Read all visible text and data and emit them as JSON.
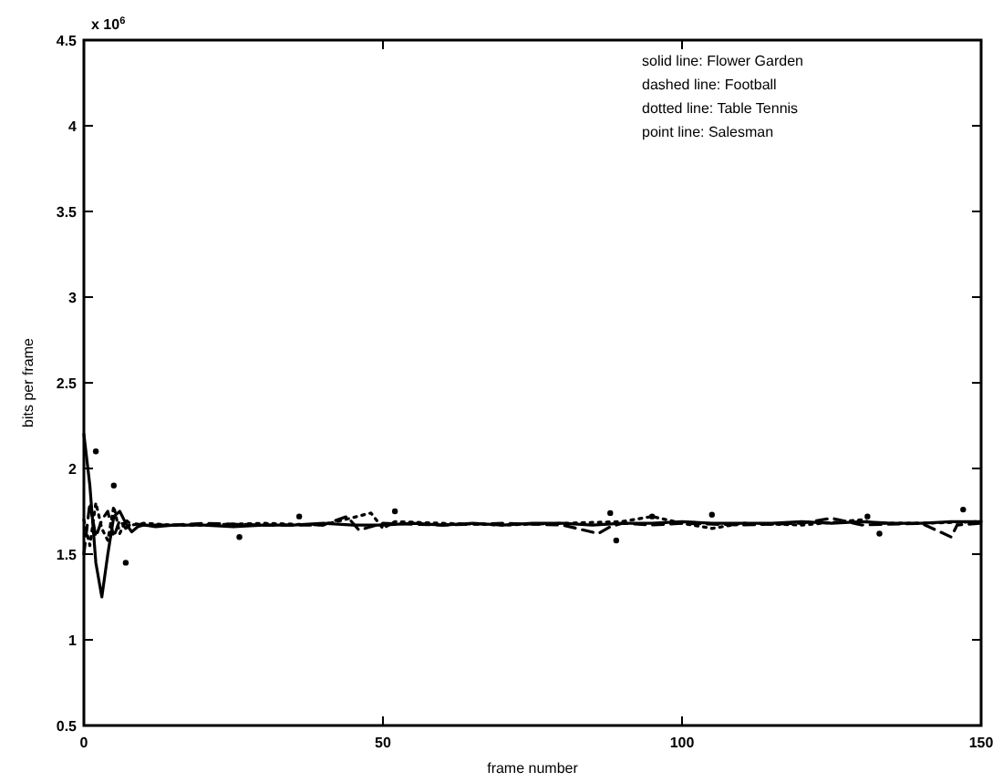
{
  "chart_data": {
    "type": "line",
    "xlabel": "frame number",
    "ylabel": "bits per frame",
    "xlim": [
      0,
      150
    ],
    "xticks": [
      0,
      50,
      100,
      150
    ],
    "ylim": [
      0.5,
      4.5
    ],
    "yticks": [
      0.5,
      1,
      1.5,
      2,
      2.5,
      3,
      3.5,
      4,
      4.5
    ],
    "annotations": [
      "x 10$^{6}$",
      "solid line: Flower Garden",
      "dashed line: Football",
      "dotted line: Table Tennis",
      "point line: Salesman"
    ],
    "series": [
      {
        "color": "#000000",
        "line_style": "solid",
        "x": [
          0,
          1,
          2,
          3,
          4,
          5,
          6,
          7,
          8,
          9,
          10,
          12,
          15,
          20,
          25,
          30,
          35,
          40,
          45,
          50,
          55,
          60,
          65,
          70,
          75,
          80,
          85,
          90,
          95,
          100,
          105,
          110,
          115,
          120,
          125,
          130,
          135,
          140,
          145,
          150
        ],
        "values": [
          2.2,
          1.9,
          1.45,
          1.25,
          1.5,
          1.72,
          1.75,
          1.68,
          1.63,
          1.66,
          1.67,
          1.66,
          1.67,
          1.67,
          1.66,
          1.67,
          1.67,
          1.68,
          1.67,
          1.67,
          1.68,
          1.67,
          1.68,
          1.67,
          1.68,
          1.68,
          1.67,
          1.68,
          1.68,
          1.69,
          1.68,
          1.68,
          1.68,
          1.69,
          1.68,
          1.69,
          1.68,
          1.68,
          1.69,
          1.69
        ]
      },
      {
        "color": "#000000",
        "line_style": "dashed",
        "x": [
          0,
          1,
          2,
          3,
          4,
          5,
          6,
          7,
          8,
          10,
          15,
          20,
          30,
          40,
          44,
          46,
          50,
          60,
          70,
          80,
          86,
          88,
          90,
          95,
          100,
          110,
          120,
          125,
          130,
          140,
          145,
          146,
          150
        ],
        "values": [
          1.5,
          1.8,
          1.6,
          1.7,
          1.75,
          1.6,
          1.7,
          1.65,
          1.68,
          1.67,
          1.67,
          1.68,
          1.67,
          1.67,
          1.72,
          1.64,
          1.68,
          1.67,
          1.68,
          1.67,
          1.62,
          1.66,
          1.68,
          1.67,
          1.68,
          1.67,
          1.68,
          1.71,
          1.67,
          1.68,
          1.6,
          1.67,
          1.68
        ]
      },
      {
        "color": "#000000",
        "line_style": "dotted",
        "x": [
          0,
          1,
          2,
          3,
          4,
          5,
          6,
          7,
          8,
          10,
          15,
          20,
          30,
          40,
          48,
          50,
          52,
          60,
          70,
          80,
          90,
          95,
          100,
          105,
          110,
          120,
          130,
          132,
          140,
          150
        ],
        "values": [
          1.7,
          1.55,
          1.8,
          1.65,
          1.58,
          1.78,
          1.62,
          1.7,
          1.67,
          1.68,
          1.67,
          1.67,
          1.68,
          1.67,
          1.74,
          1.65,
          1.69,
          1.68,
          1.67,
          1.68,
          1.69,
          1.72,
          1.68,
          1.65,
          1.68,
          1.67,
          1.7,
          1.68,
          1.68,
          1.69
        ]
      },
      {
        "color": "#000000",
        "type": "scatter",
        "marker": "circle",
        "x": [
          2,
          5,
          7,
          26,
          36,
          52,
          88,
          89,
          95,
          105,
          131,
          133,
          147
        ],
        "values": [
          2.1,
          1.9,
          1.45,
          1.6,
          1.72,
          1.75,
          1.74,
          1.58,
          1.72,
          1.73,
          1.72,
          1.62,
          1.76
        ]
      }
    ]
  }
}
